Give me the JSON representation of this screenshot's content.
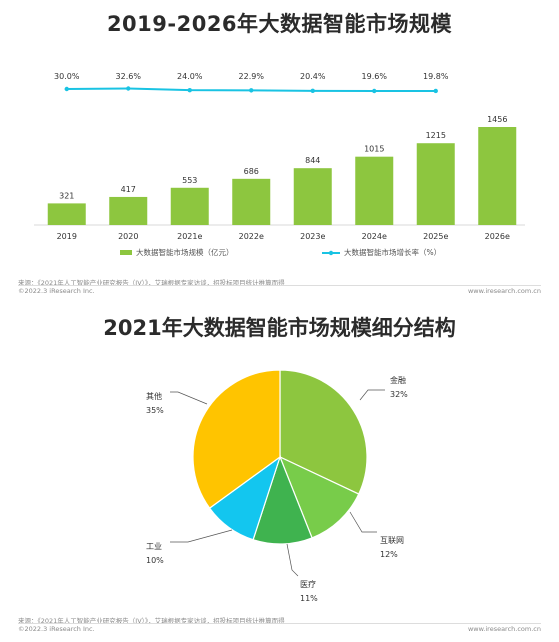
{
  "top_chart": {
    "title": "2019-2026年大数据智能市场规模",
    "chart_data": {
      "type": "bar",
      "categories": [
        "2019",
        "2020",
        "2021e",
        "2022e",
        "2023e",
        "2024e",
        "2025e",
        "2026e"
      ],
      "series": [
        {
          "name": "大数据智能市场规模（亿元）",
          "type": "bar",
          "values": [
            321,
            417,
            553,
            686,
            844,
            1015,
            1215,
            1456
          ],
          "color": "#8dc63f"
        },
        {
          "name": "大数据智能市场增长率（%）",
          "type": "line",
          "values": [
            30.0,
            32.6,
            24.0,
            22.9,
            20.4,
            19.6,
            19.8
          ],
          "x": [
            "2019",
            "2020",
            "2021e",
            "2022e",
            "2023e",
            "2024e",
            "2025e"
          ],
          "labels": [
            "30.0%",
            "32.6%",
            "24.0%",
            "22.9%",
            "20.4%",
            "19.6%",
            "19.8%"
          ],
          "color": "#19c3e3"
        }
      ],
      "legend_position": "bottom"
    },
    "footer": {
      "source": "来源：《2021年人工智能产业研究报告（IV）》，艾瑞根据专家访谈，招投标项目统计推算而得",
      "copyright": "©2022.3 iResearch Inc.",
      "url": "www.iresearch.com.cn"
    }
  },
  "bottom_chart": {
    "title": "2021年大数据智能市场规模细分结构",
    "chart_data": {
      "type": "pie",
      "slices": [
        {
          "label": "金融",
          "value": 32,
          "display": "32%",
          "color": "#8dc63f"
        },
        {
          "label": "互联网",
          "value": 12,
          "display": "12%",
          "color": "#78cc4a"
        },
        {
          "label": "医疗",
          "value": 11,
          "display": "11%",
          "color": "#3fb34f"
        },
        {
          "label": "工业",
          "value": 10,
          "display": "10%",
          "color": "#13c6ef"
        },
        {
          "label": "其他",
          "value": 35,
          "display": "35%",
          "color": "#ffc400"
        }
      ]
    },
    "footer": {
      "source": "来源：《2021年人工智能产业研究报告（IV）》，艾瑞根据专家访谈，招投标项目统计推算而得",
      "copyright": "©2022.3 iResearch Inc.",
      "url": "www.iresearch.com.cn"
    }
  }
}
